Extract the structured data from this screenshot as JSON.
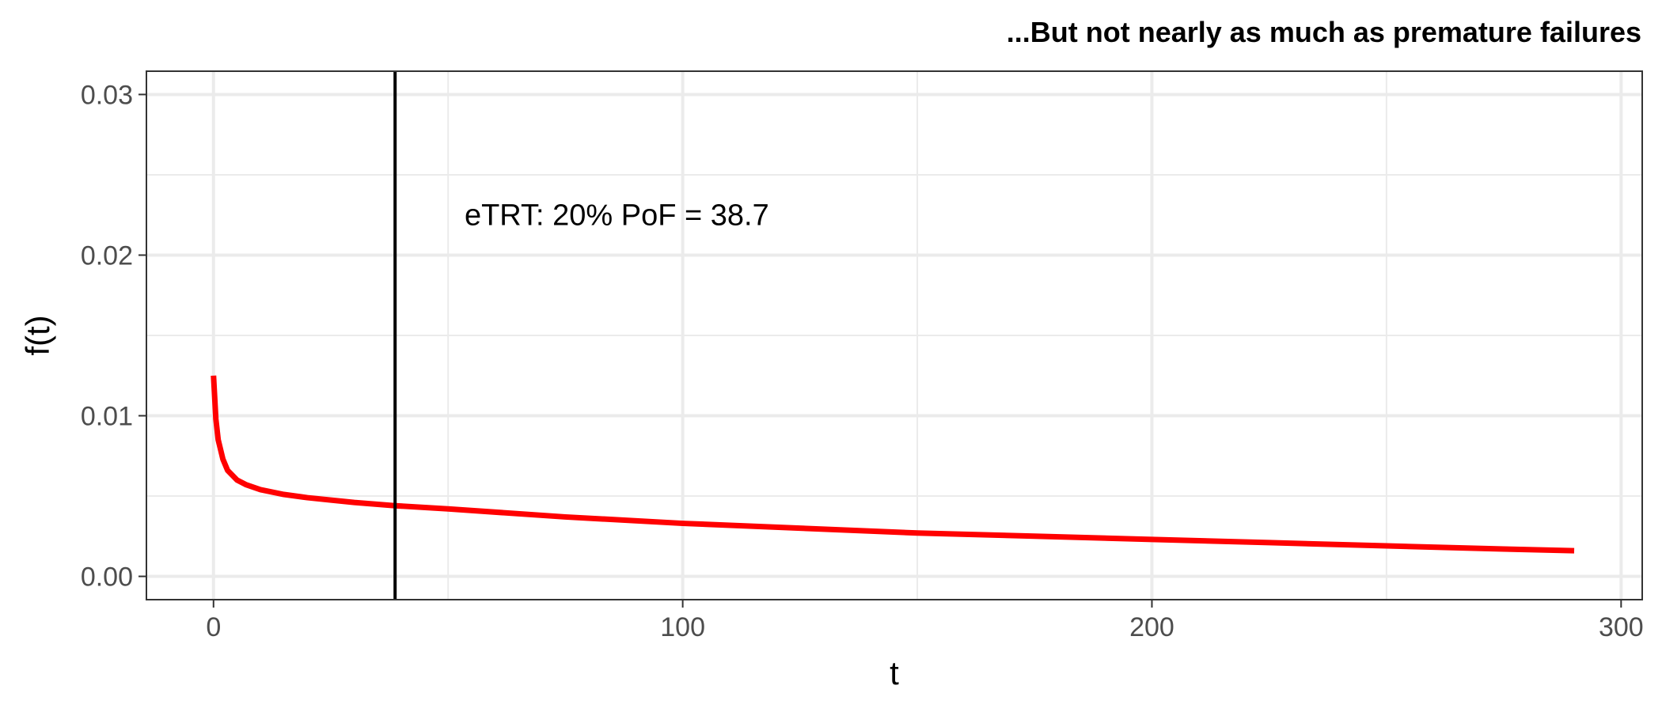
{
  "chart_data": {
    "type": "line",
    "title": "...But not nearly as much as premature failures",
    "xlabel": "t",
    "ylabel": "f(t)",
    "xlim": [
      -14.3,
      304.5
    ],
    "ylim": [
      -0.00145,
      0.03145
    ],
    "x_ticks": [
      0,
      100,
      200,
      300
    ],
    "x_tick_labels": [
      "0",
      "100",
      "200",
      "300"
    ],
    "y_ticks": [
      0,
      0.01,
      0.02,
      0.03
    ],
    "y_tick_labels": [
      "0.00",
      "0.01",
      "0.02",
      "0.03"
    ],
    "x_minor_ticks": [
      50,
      150,
      250
    ],
    "y_minor_ticks": [
      0.005,
      0.015,
      0.025
    ],
    "grid": true,
    "series": [
      {
        "color": "#ff0000",
        "x": [
          0,
          0.5,
          1,
          2,
          3,
          5,
          7,
          10,
          15,
          20,
          30,
          38.7,
          50,
          75,
          100,
          125,
          150,
          175,
          200,
          225,
          250,
          275,
          290
        ],
        "y": [
          0.0125,
          0.0098,
          0.0085,
          0.0073,
          0.0066,
          0.006,
          0.0057,
          0.0054,
          0.0051,
          0.0049,
          0.0046,
          0.0044,
          0.0042,
          0.0037,
          0.0033,
          0.003,
          0.0027,
          0.0025,
          0.0023,
          0.0021,
          0.0019,
          0.0017,
          0.0016
        ]
      }
    ],
    "vline": {
      "x": 38.7,
      "color": "#000000"
    },
    "annotation": {
      "text": "eTRT: 20% PoF = 38.7",
      "x": 53.5,
      "y": 0.0225
    }
  }
}
